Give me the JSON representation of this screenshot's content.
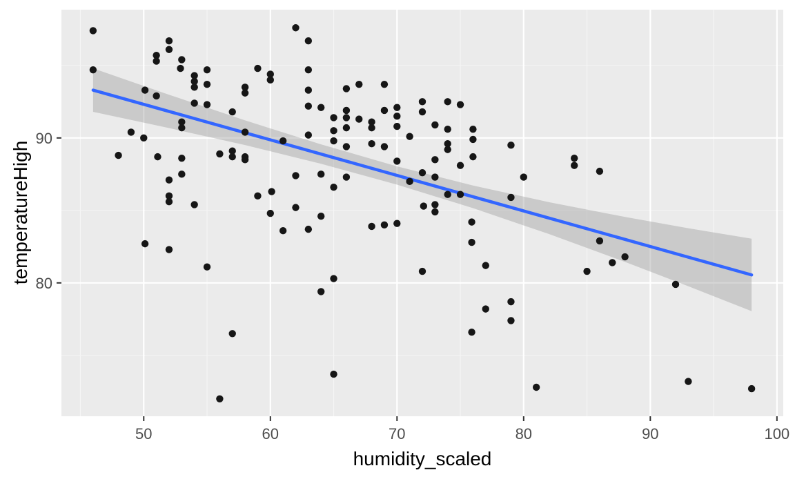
{
  "chart_data": {
    "type": "scatter",
    "title": "",
    "xlabel": "humidity_scaled",
    "ylabel": "temperatureHigh",
    "xlim": [
      43.5,
      100.5
    ],
    "ylim": [
      70.8,
      98.85
    ],
    "x_ticks": [
      50,
      60,
      70,
      80,
      90,
      100
    ],
    "y_ticks": [
      80,
      90
    ],
    "x_minor_ticks": [
      45,
      55,
      65,
      75,
      85,
      95
    ],
    "y_minor_ticks": [
      75,
      85,
      95
    ],
    "grid": "on",
    "legend": "none",
    "points": [
      [
        46.0,
        97.4
      ],
      [
        62.0,
        97.6
      ],
      [
        52.0,
        96.7
      ],
      [
        52.0,
        96.1
      ],
      [
        51.0,
        95.7
      ],
      [
        51.0,
        95.3
      ],
      [
        53.0,
        95.4
      ],
      [
        46.0,
        94.7
      ],
      [
        52.9,
        94.8
      ],
      [
        55.0,
        94.7
      ],
      [
        54.0,
        94.3
      ],
      [
        54.0,
        93.9
      ],
      [
        54.0,
        93.5
      ],
      [
        59.0,
        94.8
      ],
      [
        60.0,
        94.4
      ],
      [
        60.0,
        94.0
      ],
      [
        55.0,
        93.7
      ],
      [
        58.0,
        93.5
      ],
      [
        58.0,
        93.1
      ],
      [
        50.1,
        93.3
      ],
      [
        51.0,
        92.9
      ],
      [
        54.0,
        92.4
      ],
      [
        55.0,
        92.3
      ],
      [
        57.0,
        91.8
      ],
      [
        58.0,
        90.4
      ],
      [
        61.0,
        89.8
      ],
      [
        53.0,
        91.1
      ],
      [
        53.0,
        90.7
      ],
      [
        49.0,
        90.4
      ],
      [
        50.0,
        90.0
      ],
      [
        48.0,
        88.8
      ],
      [
        51.1,
        88.7
      ],
      [
        53.0,
        88.6
      ],
      [
        56.0,
        88.9
      ],
      [
        57.0,
        89.1
      ],
      [
        57.0,
        88.7
      ],
      [
        58.0,
        88.7
      ],
      [
        58.0,
        88.5
      ],
      [
        53.0,
        87.5
      ],
      [
        52.0,
        87.1
      ],
      [
        52.0,
        86.0
      ],
      [
        52.0,
        85.6
      ],
      [
        54.0,
        85.4
      ],
      [
        59.0,
        86.0
      ],
      [
        60.1,
        86.3
      ],
      [
        60.0,
        84.8
      ],
      [
        62.0,
        85.2
      ],
      [
        62.0,
        87.4
      ],
      [
        63.0,
        96.7
      ],
      [
        63.0,
        94.7
      ],
      [
        63.0,
        93.3
      ],
      [
        63.0,
        92.2
      ],
      [
        64.0,
        92.1
      ],
      [
        66.0,
        93.4
      ],
      [
        67.0,
        93.7
      ],
      [
        69.0,
        93.7
      ],
      [
        66.0,
        91.9
      ],
      [
        65.0,
        91.4
      ],
      [
        66.0,
        91.4
      ],
      [
        67.0,
        91.3
      ],
      [
        68.0,
        91.1
      ],
      [
        68.0,
        90.7
      ],
      [
        65.0,
        90.5
      ],
      [
        66.0,
        90.7
      ],
      [
        63.0,
        90.2
      ],
      [
        69.0,
        91.9
      ],
      [
        70.0,
        92.1
      ],
      [
        70.0,
        91.5
      ],
      [
        70.0,
        90.8
      ],
      [
        72.0,
        92.5
      ],
      [
        72.0,
        91.8
      ],
      [
        74.0,
        92.5
      ],
      [
        75.0,
        92.3
      ],
      [
        73.0,
        90.9
      ],
      [
        74.0,
        90.6
      ],
      [
        76.0,
        90.6
      ],
      [
        76.0,
        89.9
      ],
      [
        71.0,
        90.1
      ],
      [
        68.0,
        89.6
      ],
      [
        69.0,
        89.4
      ],
      [
        65.0,
        89.8
      ],
      [
        66.0,
        89.4
      ],
      [
        74.0,
        89.6
      ],
      [
        74.0,
        89.2
      ],
      [
        73.0,
        88.5
      ],
      [
        76.0,
        88.7
      ],
      [
        79.0,
        89.5
      ],
      [
        70.0,
        88.4
      ],
      [
        75.0,
        88.1
      ],
      [
        64.0,
        87.5
      ],
      [
        66.0,
        87.3
      ],
      [
        65.0,
        86.6
      ],
      [
        72.0,
        87.6
      ],
      [
        73.0,
        87.3
      ],
      [
        71.0,
        87.0
      ],
      [
        74.0,
        86.1
      ],
      [
        75.0,
        86.1
      ],
      [
        79.0,
        85.9
      ],
      [
        80.0,
        87.3
      ],
      [
        72.1,
        85.3
      ],
      [
        73.0,
        85.4
      ],
      [
        73.0,
        84.9
      ],
      [
        64.0,
        84.6
      ],
      [
        84.0,
        88.6
      ],
      [
        84.0,
        88.1
      ],
      [
        86.0,
        87.7
      ],
      [
        50.1,
        82.7
      ],
      [
        52.0,
        82.3
      ],
      [
        55.0,
        81.1
      ],
      [
        61.0,
        83.6
      ],
      [
        57.0,
        76.5
      ],
      [
        56.0,
        72.0
      ],
      [
        63.0,
        83.7
      ],
      [
        68.0,
        83.9
      ],
      [
        69.0,
        84.0
      ],
      [
        70.0,
        84.1
      ],
      [
        75.9,
        84.2
      ],
      [
        75.9,
        82.8
      ],
      [
        77.0,
        81.2
      ],
      [
        72.0,
        80.8
      ],
      [
        65.0,
        80.3
      ],
      [
        64.0,
        79.4
      ],
      [
        79.0,
        78.7
      ],
      [
        77.0,
        78.2
      ],
      [
        79.0,
        77.4
      ],
      [
        75.9,
        76.6
      ],
      [
        65.0,
        73.7
      ],
      [
        81.0,
        72.8
      ],
      [
        86.0,
        82.9
      ],
      [
        87.0,
        81.4
      ],
      [
        88.0,
        81.8
      ],
      [
        85.0,
        80.8
      ],
      [
        92.0,
        79.9
      ],
      [
        93.0,
        73.2
      ],
      [
        98.0,
        72.7
      ]
    ],
    "smooth": {
      "method": "lm",
      "x1": 46,
      "y1": 93.3,
      "x2": 98,
      "y2": 80.55
    },
    "band": {
      "x": [
        46,
        52,
        58,
        64,
        70,
        76,
        82,
        88,
        93,
        98
      ],
      "upper": [
        94.8,
        92.98,
        91.21,
        89.56,
        88.04,
        86.72,
        85.57,
        84.55,
        83.77,
        83.05
      ],
      "lower": [
        91.8,
        90.68,
        89.51,
        88.22,
        86.78,
        85.16,
        83.37,
        81.45,
        79.77,
        78.05
      ]
    },
    "colors": {
      "panel_bg": "#EBEBEB",
      "grid_major": "#FFFFFF",
      "grid_minor": "#F5F5F5",
      "point": "#161616",
      "smooth_line": "#3366FF",
      "band": "#999999",
      "band_opacity": 0.4,
      "tick_text": "#4D4D4D",
      "axis_title": "#000000",
      "tick_mark": "#333333",
      "figure_bg": "#FFFFFF"
    }
  }
}
